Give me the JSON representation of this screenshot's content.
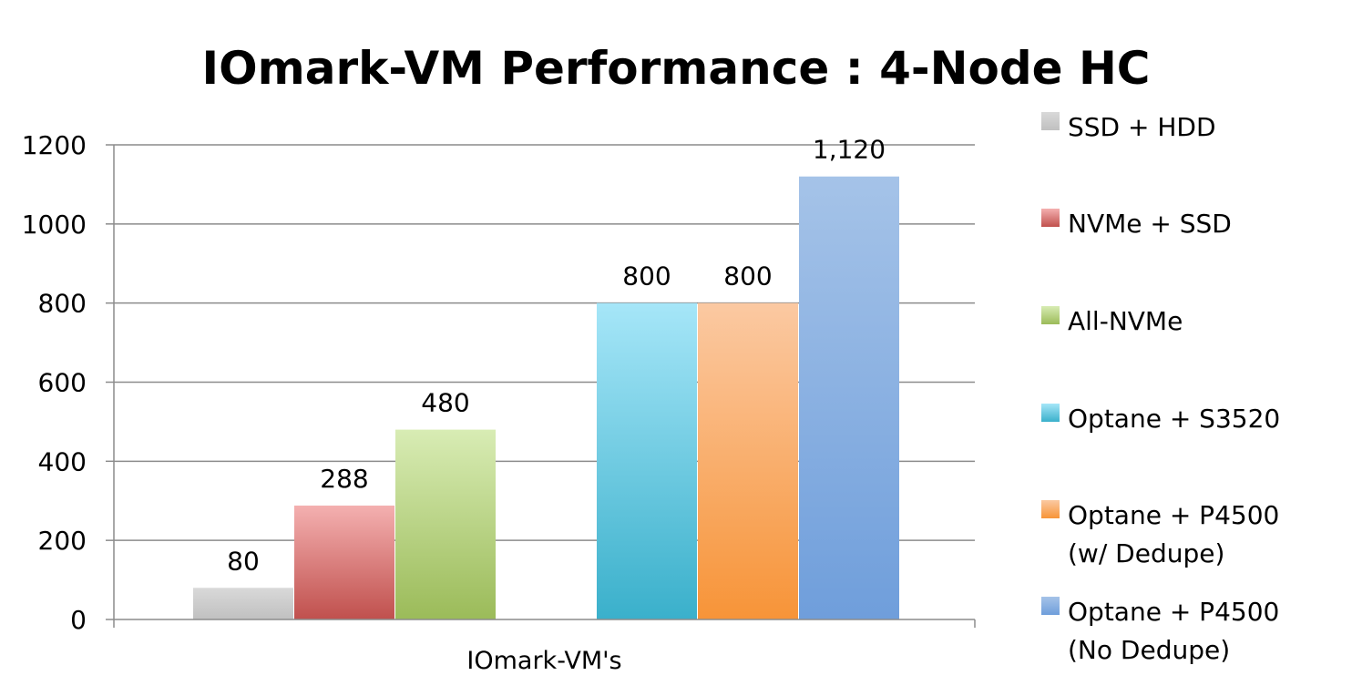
{
  "chart_data": {
    "type": "bar",
    "title": "IOmark-VM Performance : 4-Node HC",
    "xlabel": "",
    "ylabel": "",
    "categories": [
      "IOmark-VM's"
    ],
    "ylim": [
      0,
      1200
    ],
    "yticks": [
      0,
      200,
      400,
      600,
      800,
      1000,
      1200
    ],
    "grid": true,
    "legend_position": "right",
    "series": [
      {
        "name": "SSD + HDD",
        "values": [
          80
        ],
        "value_label": "80",
        "color": "#c0c0c0",
        "color_light": "#d9d9d9"
      },
      {
        "name": "NVMe + SSD",
        "values": [
          288
        ],
        "value_label": "288",
        "color": "#c0504d",
        "color_light": "#f4b0b0"
      },
      {
        "name": "All-NVMe",
        "values": [
          480
        ],
        "value_label": "480",
        "color": "#9bbb59",
        "color_light": "#d8ecb4"
      },
      {
        "name": "Optane + S3520",
        "values": [
          800
        ],
        "value_label": "800",
        "color": "#3ab0cb",
        "color_light": "#a6e6f8"
      },
      {
        "name": "Optane + P4500\n(w/ Dedupe)",
        "values": [
          800
        ],
        "value_label": "800",
        "color": "#f79438",
        "color_light": "#fbc9a2"
      },
      {
        "name": "Optane + P4500\n(No Dedupe)",
        "values": [
          1120
        ],
        "value_label": "1,120",
        "color": "#6f9edb",
        "color_light": "#a5c3e8"
      }
    ]
  }
}
